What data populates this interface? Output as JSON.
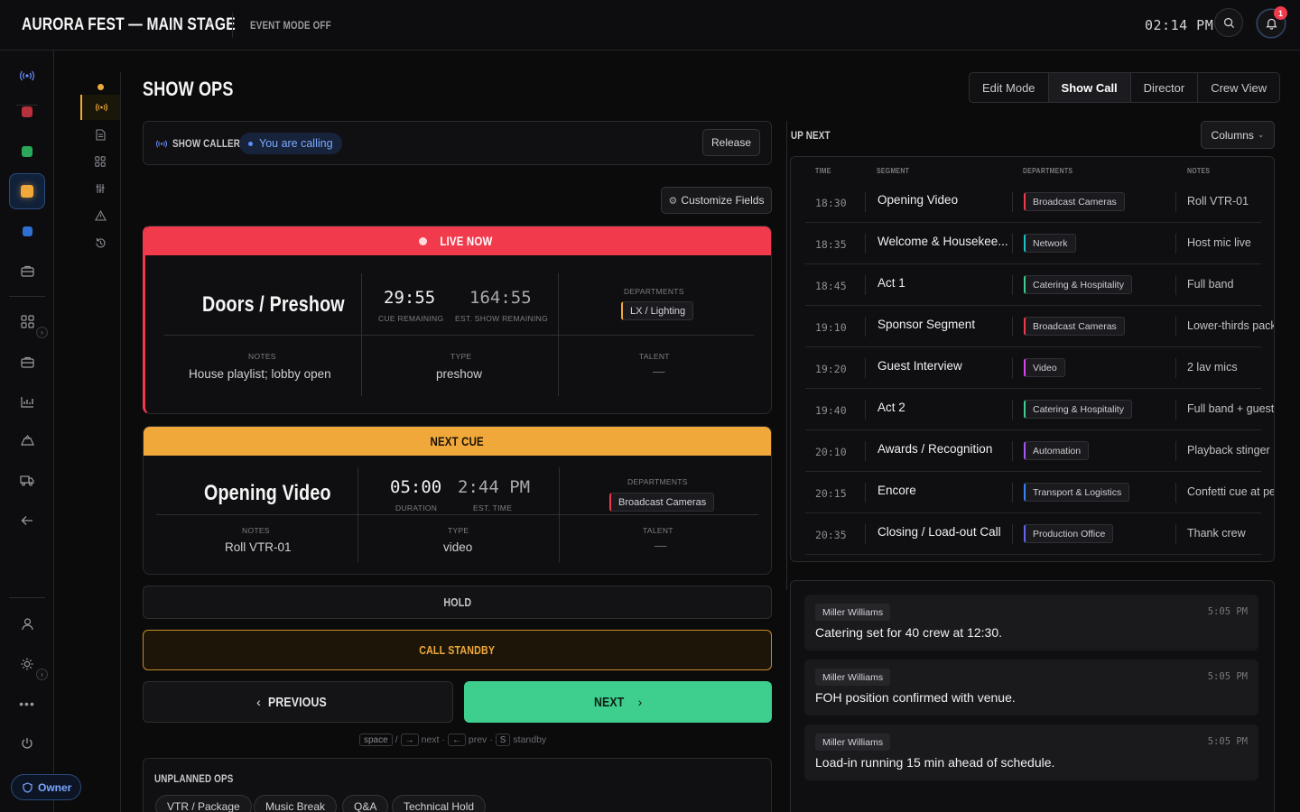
{
  "header": {
    "app_title": "AURORA FEST — MAIN STAGE",
    "event_mode": "EVENT MODE OFF",
    "clock": "02:14 PM",
    "notification_count": "1"
  },
  "page": {
    "title": "SHOW OPS"
  },
  "view_modes": [
    "Edit Mode",
    "Show Call",
    "Director",
    "Crew View"
  ],
  "active_view": "Show Call",
  "caller": {
    "label": "SHOW CALLER",
    "status": "You are calling",
    "release_label": "Release"
  },
  "customize_label": "Customize Fields",
  "live": {
    "header": "LIVE NOW",
    "name": "Doors / Preshow",
    "cue_remaining": "29:55",
    "cue_remaining_label": "CUE REMAINING",
    "show_remaining": "164:55",
    "show_remaining_label": "EST. SHOW REMAINING",
    "departments_label": "DEPARTMENTS",
    "department": "LX / Lighting",
    "department_color": "#f0a83a",
    "notes_label": "NOTES",
    "notes": "House playlist; lobby open",
    "type_label": "TYPE",
    "type": "preshow",
    "talent_label": "TALENT",
    "talent": "—"
  },
  "next": {
    "header": "NEXT CUE",
    "name": "Opening Video",
    "duration": "05:00",
    "duration_label": "DURATION",
    "est_time": "2:44 PM",
    "est_time_label": "EST. TIME",
    "departments_label": "DEPARTMENTS",
    "department": "Broadcast Cameras",
    "department_color": "#ef3b4c",
    "notes_label": "NOTES",
    "notes": "Roll VTR-01",
    "type_label": "TYPE",
    "type": "video",
    "talent_label": "TALENT",
    "talent": "—"
  },
  "controls": {
    "hold": "HOLD",
    "standby": "CALL STANDBY",
    "previous": "PREVIOUS",
    "next": "NEXT",
    "shortcut_keys": [
      "space",
      "→",
      "←",
      "S"
    ],
    "shortcut_words": [
      "/",
      "next ·",
      "prev ·",
      "standby"
    ]
  },
  "unplanned": {
    "title": "UNPLANNED OPS",
    "chips": [
      "VTR / Package",
      "Music Break",
      "Q&A",
      "Technical Hold"
    ]
  },
  "upnext": {
    "title": "UP NEXT",
    "columns_label": "Columns",
    "headers": [
      "TIME",
      "SEGMENT",
      "DEPARTMENTS",
      "NOTES"
    ],
    "rows": [
      {
        "time": "18:30",
        "segment": "Opening Video",
        "dept": "Broadcast Cameras",
        "color": "#ef3b4c",
        "note": "Roll VTR-01"
      },
      {
        "time": "18:35",
        "segment": "Welcome & Housekee...",
        "dept": "Network",
        "color": "#22c1c3",
        "note": "Host mic live"
      },
      {
        "time": "18:45",
        "segment": "Act 1",
        "dept": "Catering & Hospitality",
        "color": "#3ecf8e",
        "note": "Full band"
      },
      {
        "time": "19:10",
        "segment": "Sponsor Segment",
        "dept": "Broadcast Cameras",
        "color": "#ef3b4c",
        "note": "Lower-thirds pack"
      },
      {
        "time": "19:20",
        "segment": "Guest Interview",
        "dept": "Video",
        "color": "#d946ef",
        "note": "2 lav mics"
      },
      {
        "time": "19:40",
        "segment": "Act 2",
        "dept": "Catering & Hospitality",
        "color": "#3ecf8e",
        "note": "Full band + guest"
      },
      {
        "time": "20:10",
        "segment": "Awards / Recognition",
        "dept": "Automation",
        "color": "#a855f7",
        "note": "Playback stinger"
      },
      {
        "time": "20:15",
        "segment": "Encore",
        "dept": "Transport & Logistics",
        "color": "#3b82f6",
        "note": "Confetti cue at pe"
      },
      {
        "time": "20:35",
        "segment": "Closing / Load-out Call",
        "dept": "Production Office",
        "color": "#6366f1",
        "note": "Thank crew"
      }
    ]
  },
  "notes_feed": [
    {
      "author": "Miller Williams",
      "time": "5:05 PM",
      "text": "Catering set for 40 crew at 12:30."
    },
    {
      "author": "Miller Williams",
      "time": "5:05 PM",
      "text": "FOH position confirmed with venue."
    },
    {
      "author": "Miller Williams",
      "time": "5:05 PM",
      "text": "Load-in running 15 min ahead of schedule."
    }
  ],
  "user": {
    "role": "Owner"
  },
  "rail_colors": [
    "#e03a47",
    "#2fbf5f",
    "#f0a83a",
    "#3b82f6"
  ],
  "icons": [
    "broadcast-icon",
    "document-icon",
    "grid-icon",
    "sliders-icon",
    "warning-icon",
    "history-icon",
    "briefcase-icon",
    "chart-icon",
    "truck-icon",
    "arrow-left-icon",
    "user-icon",
    "sun-icon",
    "more-icon",
    "power-icon",
    "shield-icon",
    "search-icon",
    "bell-icon"
  ]
}
